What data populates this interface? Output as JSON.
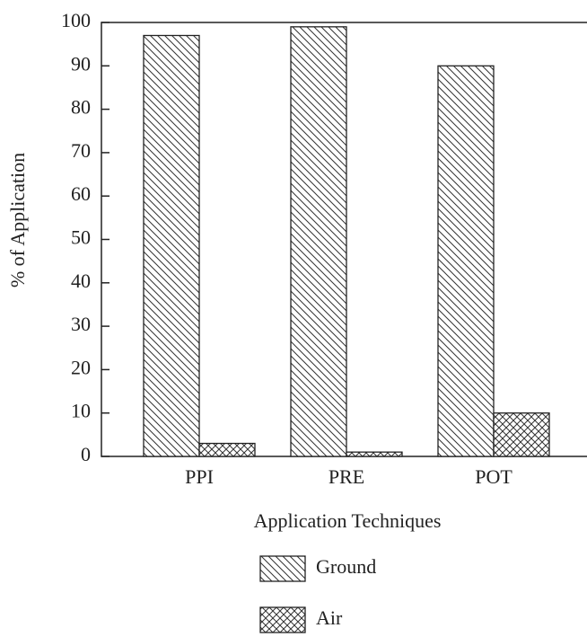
{
  "chart_data": {
    "type": "bar",
    "x_label": "Application Techniques",
    "y_label": "% of Application",
    "categories": [
      "PPI",
      "PRE",
      "POT"
    ],
    "series": [
      {
        "name": "Ground",
        "color": "#222222",
        "pattern": "diagonal",
        "values": [
          97,
          99,
          90
        ]
      },
      {
        "name": "Air",
        "color": "#222222",
        "pattern": "crosshatch",
        "values": [
          3,
          1,
          10
        ]
      }
    ],
    "ylim": [
      0,
      100
    ],
    "yticks": [
      0,
      10,
      20,
      30,
      40,
      50,
      60,
      70,
      80,
      90,
      100
    ],
    "legend": "bottom"
  }
}
